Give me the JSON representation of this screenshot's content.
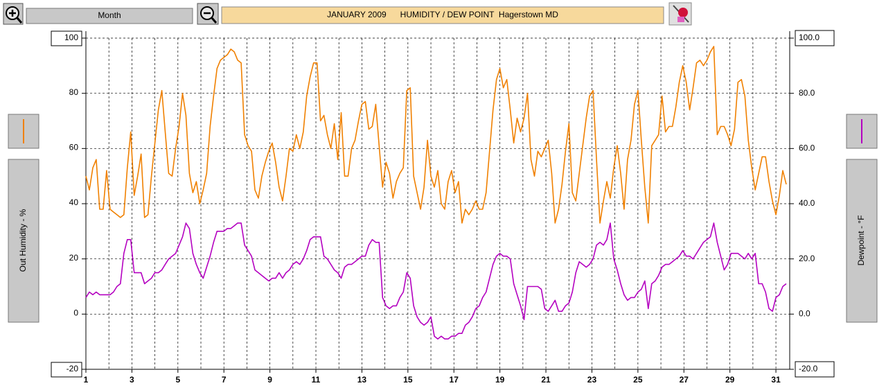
{
  "toolbar": {
    "period": "Month"
  },
  "chart_data": {
    "type": "line",
    "title": "JANUARY 2009      HUMIDITY / DEW POINT  Hagerstown MD",
    "x": [
      1,
      1.15,
      1.3,
      1.45,
      1.6,
      1.75,
      1.9,
      2.05,
      2.2,
      2.35,
      2.5,
      2.65,
      2.8,
      2.95,
      3.1,
      3.25,
      3.4,
      3.55,
      3.7,
      3.85,
      4,
      4.15,
      4.3,
      4.45,
      4.6,
      4.75,
      4.9,
      5.05,
      5.2,
      5.35,
      5.5,
      5.65,
      5.8,
      5.95,
      6.1,
      6.25,
      6.4,
      6.55,
      6.7,
      6.85,
      7,
      7.15,
      7.3,
      7.45,
      7.6,
      7.75,
      7.9,
      8.05,
      8.2,
      8.35,
      8.5,
      8.65,
      8.8,
      8.95,
      9.1,
      9.25,
      9.4,
      9.55,
      9.7,
      9.85,
      10,
      10.15,
      10.3,
      10.45,
      10.6,
      10.75,
      10.9,
      11.05,
      11.2,
      11.35,
      11.5,
      11.65,
      11.8,
      11.95,
      12.1,
      12.25,
      12.4,
      12.55,
      12.7,
      12.85,
      13,
      13.15,
      13.3,
      13.45,
      13.6,
      13.75,
      13.9,
      14.05,
      14.2,
      14.35,
      14.5,
      14.65,
      14.8,
      14.95,
      15.1,
      15.25,
      15.4,
      15.55,
      15.7,
      15.85,
      16,
      16.15,
      16.3,
      16.45,
      16.6,
      16.75,
      16.9,
      17.05,
      17.2,
      17.35,
      17.5,
      17.65,
      17.8,
      17.95,
      18.1,
      18.25,
      18.4,
      18.55,
      18.7,
      18.85,
      19,
      19.15,
      19.3,
      19.45,
      19.6,
      19.75,
      19.9,
      20.05,
      20.2,
      20.35,
      20.5,
      20.65,
      20.8,
      20.95,
      21.1,
      21.25,
      21.4,
      21.55,
      21.7,
      21.85,
      22,
      22.15,
      22.3,
      22.45,
      22.6,
      22.75,
      22.9,
      23.05,
      23.2,
      23.35,
      23.5,
      23.65,
      23.8,
      23.95,
      24.1,
      24.25,
      24.4,
      24.55,
      24.7,
      24.85,
      25,
      25.15,
      25.3,
      25.45,
      25.6,
      25.75,
      25.9,
      26.05,
      26.2,
      26.35,
      26.5,
      26.65,
      26.8,
      26.95,
      27.1,
      27.25,
      27.4,
      27.55,
      27.7,
      27.85,
      28,
      28.15,
      28.3,
      28.45,
      28.6,
      28.75,
      28.9,
      29.05,
      29.2,
      29.35,
      29.5,
      29.65,
      29.8,
      29.95,
      30.1,
      30.25,
      30.4,
      30.55,
      30.7,
      30.85,
      31,
      31.15,
      31.3,
      31.45
    ],
    "xlim": [
      1,
      31.6
    ],
    "xticks": [
      1,
      3,
      5,
      7,
      9,
      11,
      13,
      15,
      17,
      19,
      21,
      23,
      25,
      27,
      29,
      31
    ],
    "ylim": [
      -20,
      100
    ],
    "yticks": [
      100,
      80,
      60,
      40,
      20,
      0,
      -20
    ],
    "y2lim": [
      -20,
      100
    ],
    "y2ticks": [
      {
        "value": 100,
        "label": "100.0"
      },
      {
        "value": 80,
        "label": "80.0"
      },
      {
        "value": 60,
        "label": "60.0"
      },
      {
        "value": 40,
        "label": "40.0"
      },
      {
        "value": 20,
        "label": "20.0"
      },
      {
        "value": 0,
        "label": "0.0"
      },
      {
        "value": -20,
        "label": "-20.0"
      }
    ],
    "grid": true,
    "series": [
      {
        "name": "Out Humidity - %",
        "color": "#f08000",
        "axis": "y",
        "values": [
          50,
          45,
          53,
          56,
          38,
          38,
          52,
          38,
          37,
          36,
          35,
          36,
          53,
          66,
          43,
          50,
          58,
          35,
          36,
          50,
          62,
          74,
          81,
          66,
          51,
          50,
          60,
          68,
          80,
          72,
          51,
          44,
          48,
          40,
          45,
          51,
          68,
          79,
          89,
          92,
          93,
          94,
          96,
          95,
          92,
          91,
          65,
          61,
          59,
          45,
          42,
          50,
          55,
          59,
          62,
          55,
          46,
          41,
          50,
          60,
          59,
          65,
          60,
          66,
          79,
          86,
          91,
          91,
          70,
          72,
          65,
          60,
          69,
          56,
          73,
          50,
          50,
          60,
          63,
          70,
          76,
          77,
          67,
          68,
          76,
          61,
          46,
          55,
          51,
          42,
          48,
          51,
          53,
          81,
          82,
          50,
          44,
          38,
          46,
          63,
          50,
          46,
          52,
          40,
          38,
          48,
          52,
          44,
          48,
          33,
          38,
          36,
          38,
          41,
          38,
          38,
          44,
          59,
          74,
          85,
          89,
          82,
          85,
          74,
          62,
          71,
          66,
          71,
          80,
          56,
          50,
          59,
          57,
          60,
          63,
          51,
          33,
          38,
          47,
          59,
          69,
          44,
          41,
          51,
          61,
          71,
          79,
          81,
          56,
          33,
          41,
          48,
          42,
          53,
          61,
          51,
          38,
          56,
          63,
          76,
          81,
          63,
          46,
          33,
          61,
          63,
          65,
          79,
          66,
          68,
          68,
          75,
          84,
          90,
          84,
          74,
          82,
          91,
          92,
          90,
          92,
          95,
          97,
          65,
          68,
          68,
          65,
          61,
          67,
          84,
          85,
          79,
          63,
          53,
          45,
          51,
          57,
          57,
          48,
          41,
          36,
          43,
          52,
          47
        ]
      },
      {
        "name": "Dewpoint - °F",
        "color": "#b400c0",
        "axis": "y2",
        "values": [
          6,
          8,
          7,
          8,
          7,
          7,
          7,
          7,
          8,
          10,
          11,
          22,
          27,
          27,
          15,
          15,
          15,
          11,
          12,
          13,
          15,
          15,
          16,
          18,
          20,
          21,
          22,
          25,
          28,
          33,
          31,
          22,
          18,
          15,
          13,
          17,
          21,
          26,
          30,
          30,
          30,
          31,
          31,
          32,
          33,
          33,
          25,
          23,
          21,
          16,
          15,
          14,
          13,
          12,
          13,
          13,
          15,
          13,
          15,
          16,
          18,
          19,
          18,
          20,
          23,
          27,
          28,
          28,
          28,
          21,
          20,
          18,
          16,
          15,
          13,
          17,
          18,
          18,
          19,
          20,
          21,
          21,
          25,
          27,
          26,
          26,
          6,
          3,
          2,
          3,
          3,
          6,
          8,
          15,
          13,
          3,
          -1,
          -3,
          -4,
          -3,
          -1,
          -8,
          -9,
          -8,
          -9,
          -9,
          -8,
          -8,
          -7,
          -7,
          -4,
          -3,
          -1,
          2,
          3,
          6,
          8,
          13,
          18,
          21,
          22,
          21,
          21,
          20,
          11,
          7,
          3,
          -2,
          10,
          10,
          10,
          10,
          9,
          2,
          1,
          3,
          5,
          1,
          1,
          3,
          4,
          8,
          15,
          19,
          18,
          17,
          18,
          20,
          25,
          26,
          25,
          27,
          33,
          20,
          16,
          11,
          7,
          5,
          6,
          6,
          8,
          9,
          12,
          2,
          11,
          12,
          14,
          17,
          18,
          18,
          19,
          20,
          21,
          23,
          21,
          21,
          20,
          22,
          24,
          26,
          27,
          28,
          33,
          26,
          21,
          16,
          18,
          22,
          22,
          22,
          21,
          20,
          22,
          20,
          22,
          11,
          11,
          8,
          2,
          1,
          6,
          7,
          10,
          11
        ]
      }
    ]
  }
}
